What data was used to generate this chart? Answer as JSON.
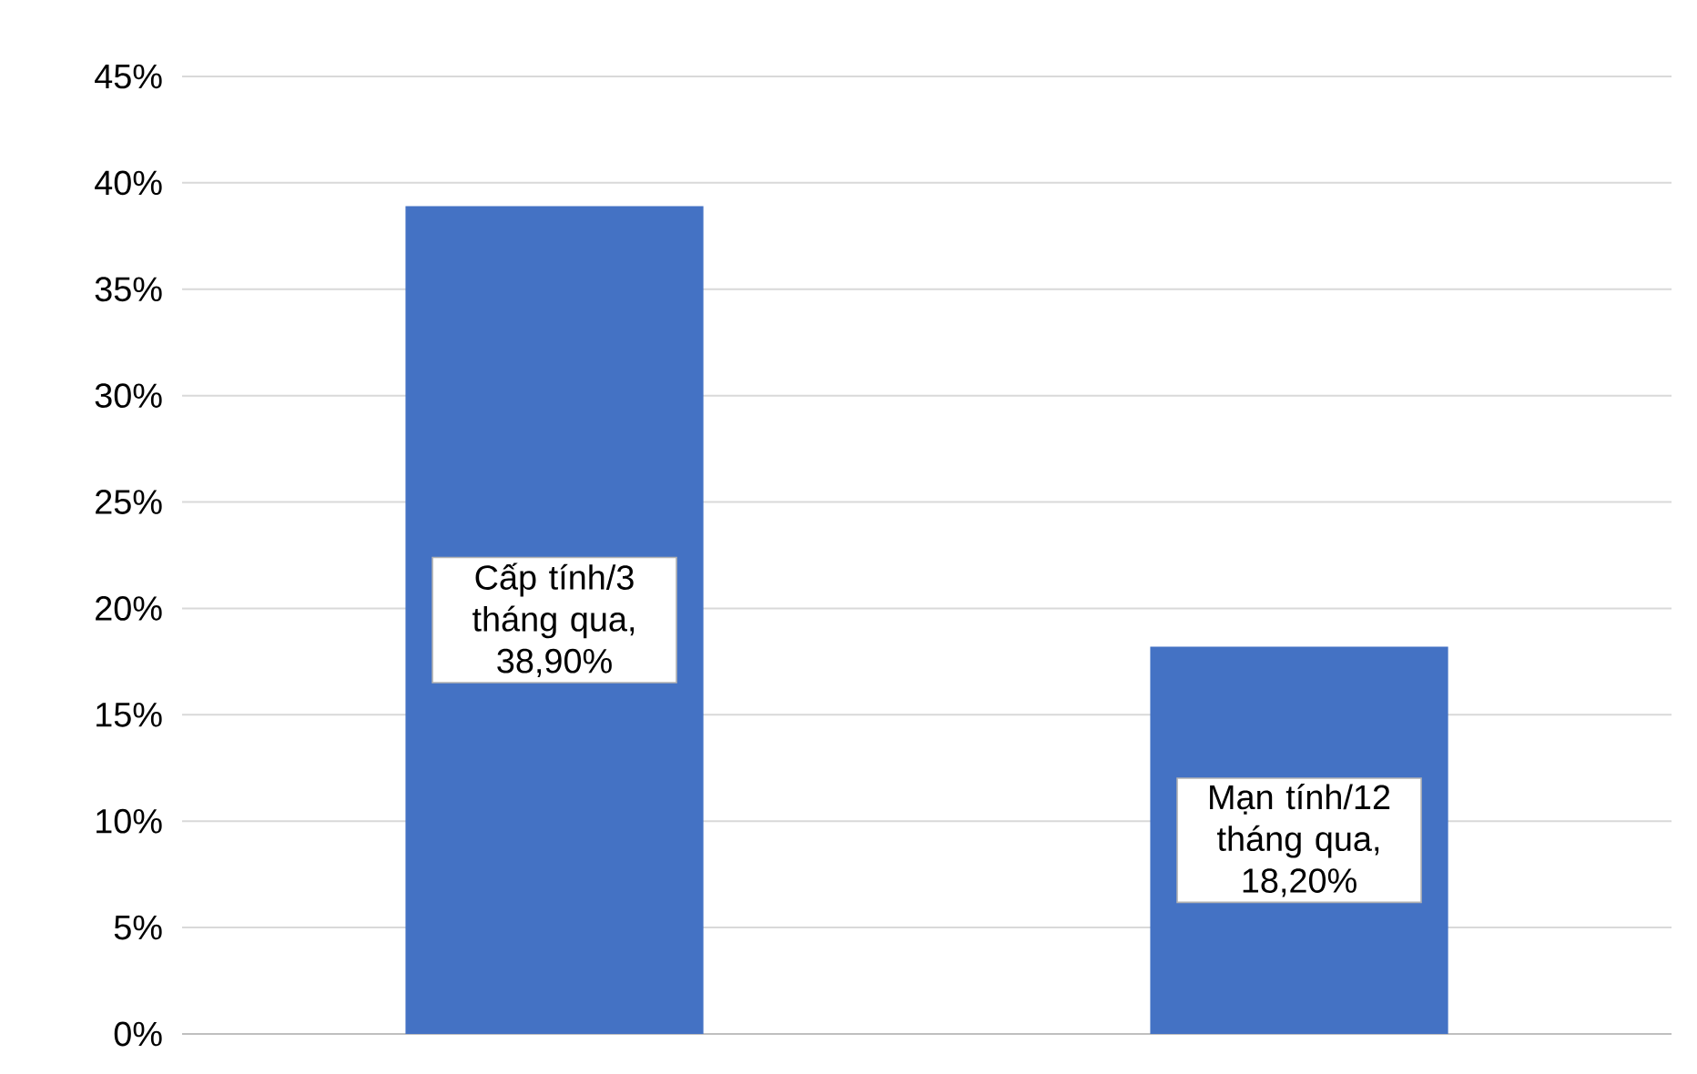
{
  "chart_data": {
    "type": "bar",
    "categories": [
      null,
      null
    ],
    "values": [
      38.9,
      18.2
    ],
    "color": "#4472c4",
    "value_labels": [
      "Cấp tính/3 tháng qua, 38,90%",
      "Mạn tính/12 tháng qua, 18,20%"
    ],
    "ylim": [
      0,
      45
    ],
    "yticks": [
      {
        "value": 0,
        "label": "0%"
      },
      {
        "value": 5,
        "label": "5%"
      },
      {
        "value": 10,
        "label": "10%"
      },
      {
        "value": 15,
        "label": "15%"
      },
      {
        "value": 20,
        "label": "20%"
      },
      {
        "value": 25,
        "label": "25%"
      },
      {
        "value": 30,
        "label": "30%"
      },
      {
        "value": 35,
        "label": "35%"
      },
      {
        "value": 40,
        "label": "40%"
      },
      {
        "value": 45,
        "label": "45%"
      }
    ],
    "grid": "y"
  }
}
